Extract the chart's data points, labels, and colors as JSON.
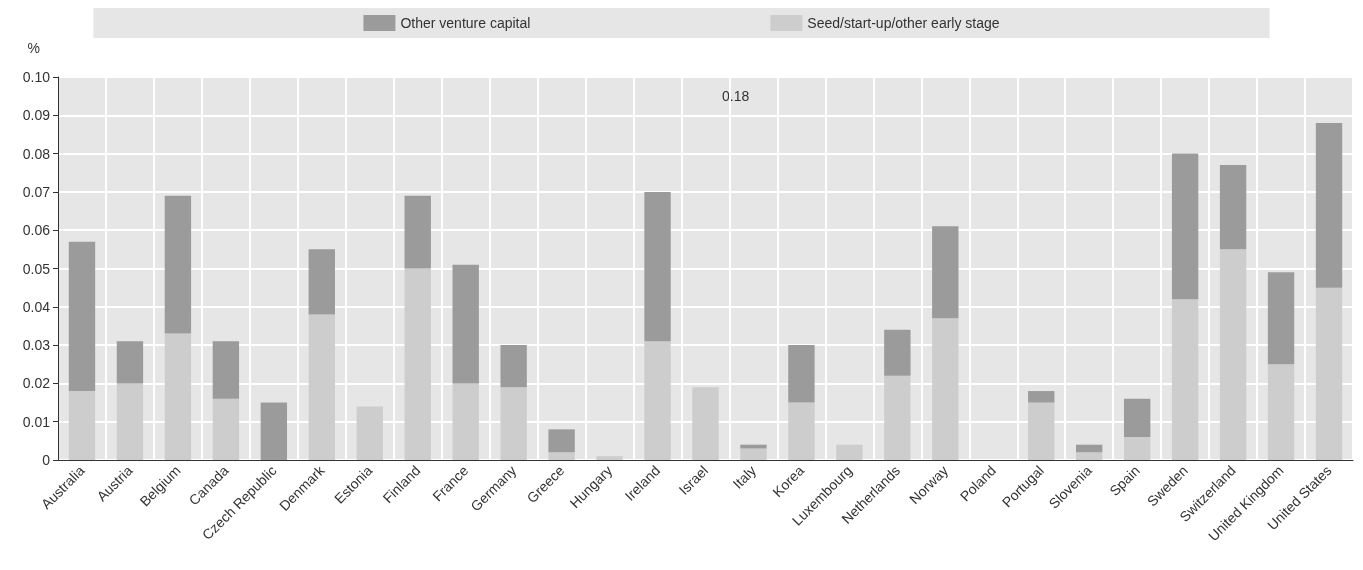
{
  "chart_data": {
    "type": "bar",
    "stacked": true,
    "ylabel": "%",
    "categories": [
      "Australia",
      "Austria",
      "Belgium",
      "Canada",
      "Czech Republic",
      "Denmark",
      "Estonia",
      "Finland",
      "France",
      "Germany",
      "Greece",
      "Hungary",
      "Ireland",
      "Israel",
      "Italy",
      "Korea",
      "Luxembourg",
      "Netherlands",
      "Norway",
      "Poland",
      "Portugal",
      "Slovenia",
      "Spain",
      "Sweden",
      "Switzerland",
      "United Kingdom",
      "United States"
    ],
    "series": [
      {
        "name": "Seed/start-up/other early stage",
        "color": "#cdcdcd",
        "values": [
          0.018,
          0.02,
          0.033,
          0.016,
          0,
          0.038,
          0.014,
          0.05,
          0.02,
          0.019,
          0.002,
          0.001,
          0.031,
          0.019,
          0.003,
          0.015,
          0.004,
          0.022,
          0.037,
          0,
          0.015,
          0.002,
          0.006,
          0.042,
          0.055,
          0.025,
          0.045
        ]
      },
      {
        "name": "Other venture capital",
        "color": "#9b9b9b",
        "values": [
          0.039,
          0.011,
          0.036,
          0.015,
          0.015,
          0.017,
          0,
          0.019,
          0.031,
          0.011,
          0.006,
          0,
          0.039,
          null,
          0.001,
          0.015,
          0,
          0.012,
          0.024,
          0,
          0.003,
          0.002,
          0.01,
          0.038,
          0.022,
          0.024,
          0.043
        ]
      }
    ],
    "annotations": [
      "0.18"
    ],
    "ylim": [
      0,
      0.1
    ],
    "yticks": [
      0,
      0.01,
      0.02,
      0.03,
      0.04,
      0.05,
      0.06,
      0.07,
      0.08,
      0.09,
      {
        "value": 0.1,
        "label": "0.10"
      }
    ],
    "grid": true,
    "legend": "top"
  }
}
